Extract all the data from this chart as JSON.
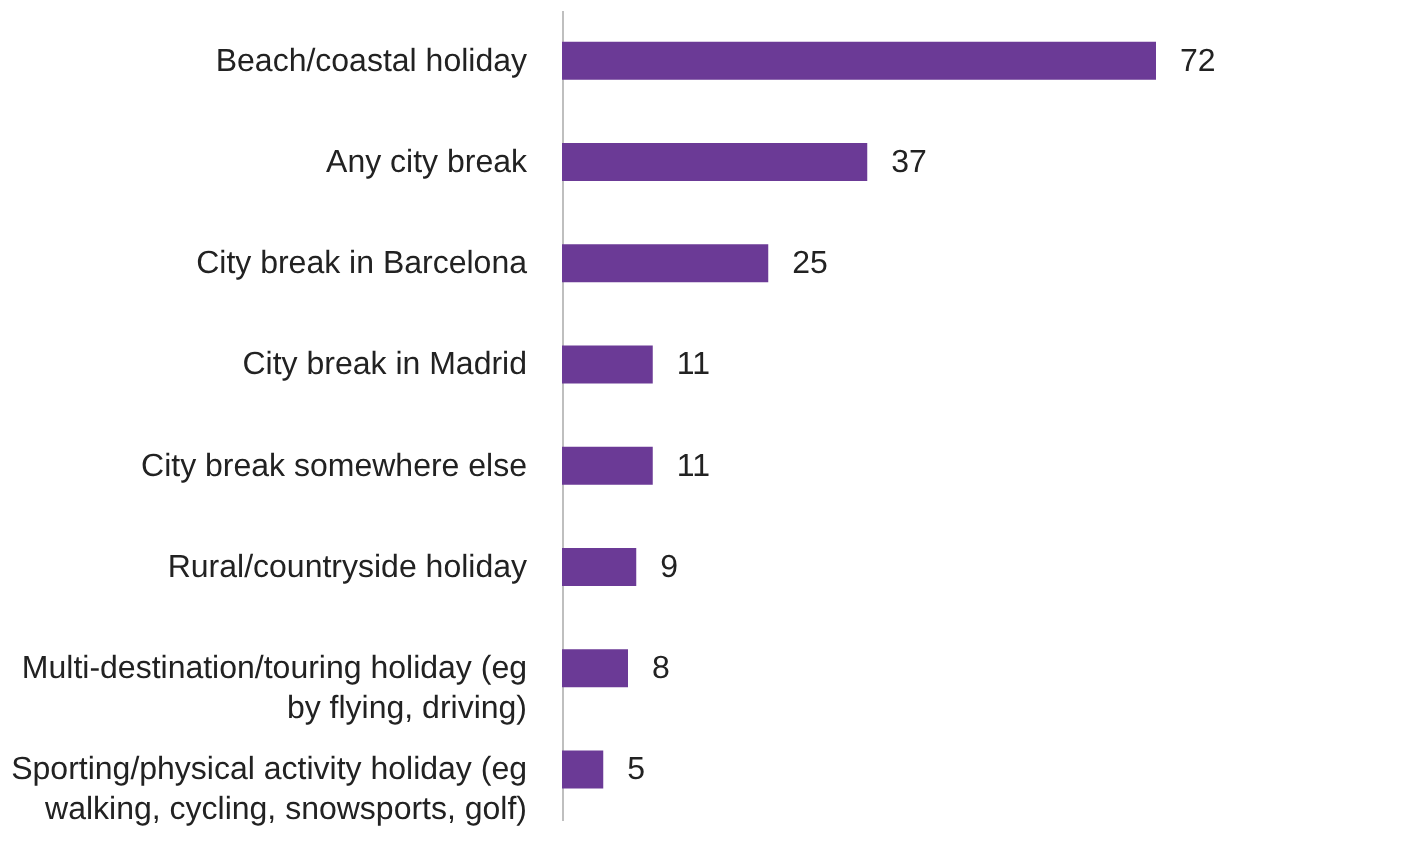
{
  "chart_data": {
    "type": "bar",
    "orientation": "horizontal",
    "categories": [
      "Beach/coastal holiday",
      "Any city break",
      "City break in Barcelona",
      "City break in Madrid",
      "City break somewhere else",
      "Rural/countryside holiday",
      "Multi-destination/touring holiday (eg by flying, driving)",
      "Sporting/physical activity holiday (eg walking, cycling, snowsports, golf)"
    ],
    "values": [
      72,
      37,
      25,
      11,
      11,
      9,
      8,
      5
    ],
    "color": "#6b3a96",
    "data_labels": true,
    "grid": false
  }
}
